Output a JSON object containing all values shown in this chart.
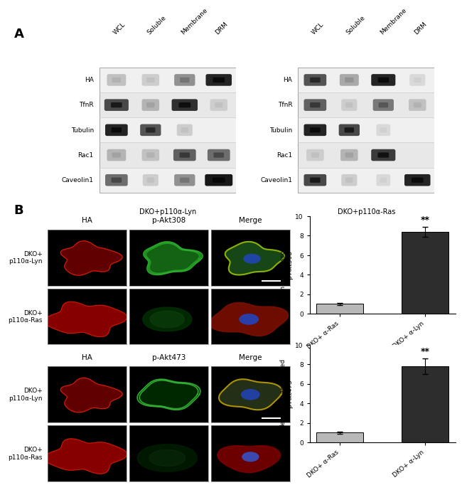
{
  "panel_A_label": "A",
  "panel_B_label": "B",
  "wb_labels_left": [
    "HA",
    "TfnR",
    "Tubulin",
    "Rac1",
    "Caveolin1"
  ],
  "wb_col_labels": [
    "WCL",
    "Soluble",
    "Membrane",
    "DRM"
  ],
  "wb_title_left": "DKO+p110α-Lyn",
  "wb_title_right": "DKO+p110α-Ras",
  "bar_chart1": {
    "categories": [
      "DKO+ α-Ras",
      "DKO+ α-Lyn"
    ],
    "values": [
      1.0,
      8.4
    ],
    "errors": [
      0.1,
      0.5
    ],
    "colors": [
      "#b8b8b8",
      "#2d2d2d"
    ],
    "ylabel": "Membrane-associated\np-Akt308",
    "ylim": [
      0,
      10
    ],
    "yticks": [
      0,
      2,
      4,
      6,
      8,
      10
    ],
    "significance": "**"
  },
  "bar_chart2": {
    "categories": [
      "DKO+ α-Ras",
      "DKO+ α-Lyn"
    ],
    "values": [
      1.0,
      7.8
    ],
    "errors": [
      0.1,
      0.8
    ],
    "colors": [
      "#b8b8b8",
      "#2d2d2d"
    ],
    "ylabel": "Membrane-associated\np-Akt473",
    "ylim": [
      0,
      10
    ],
    "yticks": [
      0,
      2,
      4,
      6,
      8,
      10
    ],
    "significance": "**"
  },
  "microscopy_top_col_labels": [
    "HA",
    "p-Akt308",
    "Merge"
  ],
  "microscopy_bot_col_labels": [
    "HA",
    "p-Akt473",
    "Merge"
  ],
  "microscopy_top_row_labels": [
    "DKO+\np110α-Lyn",
    "DKO+\np110α-Ras"
  ],
  "microscopy_bot_row_labels": [
    "DKO+\np110α-Lyn",
    "DKO+\np110α-Ras"
  ],
  "background_color": "#ffffff",
  "font_size": 7,
  "label_font_size": 13
}
